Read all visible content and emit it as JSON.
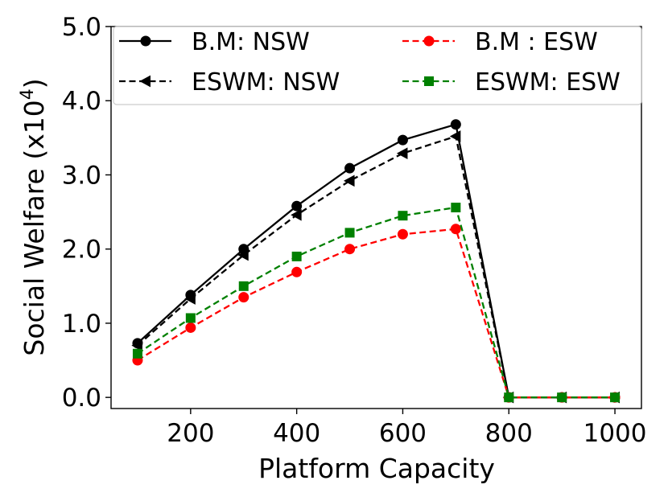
{
  "chart_data": {
    "type": "line",
    "xlabel": "Platform Capacity",
    "ylabel": "Social Welfare (x10",
    "ylabel_exponent": "4",
    "ylabel_close": ")",
    "xlim": [
      50,
      1050
    ],
    "ylim": [
      -0.15,
      5.0
    ],
    "x_ticks": [
      200,
      400,
      600,
      800,
      1000
    ],
    "x_tick_labels": [
      "200",
      "400",
      "600",
      "800",
      "1000"
    ],
    "y_ticks": [
      0.0,
      1.0,
      2.0,
      3.0,
      4.0,
      5.0
    ],
    "y_tick_labels": [
      "0.0",
      "1.0",
      "2.0",
      "3.0",
      "4.0",
      "5.0"
    ],
    "grid": false,
    "legend_position": "top",
    "x": [
      100,
      200,
      300,
      400,
      500,
      600,
      700,
      800,
      900,
      1000
    ],
    "series": [
      {
        "name": "B.M: NSW",
        "values": [
          0.73,
          1.38,
          2.0,
          2.58,
          3.09,
          3.47,
          3.68,
          0.0,
          0.0,
          0.0
        ],
        "color": "#000000",
        "dash": "solid",
        "marker": "circle"
      },
      {
        "name": "ESWM: NSW",
        "values": [
          0.7,
          1.33,
          1.92,
          2.46,
          2.92,
          3.29,
          3.52,
          0.0,
          0.0,
          0.0
        ],
        "color": "#000000",
        "dash": "dashed",
        "marker": "triangle-left"
      },
      {
        "name": "B.M : ESW",
        "values": [
          0.5,
          0.94,
          1.35,
          1.69,
          2.0,
          2.2,
          2.27,
          0.0,
          0.0,
          0.0
        ],
        "color": "#ff0000",
        "dash": "dashed",
        "marker": "circle"
      },
      {
        "name": "ESWM: ESW",
        "values": [
          0.59,
          1.07,
          1.5,
          1.9,
          2.22,
          2.45,
          2.56,
          0.0,
          0.0,
          0.0
        ],
        "color": "#008000",
        "dash": "dashed",
        "marker": "square"
      }
    ]
  }
}
